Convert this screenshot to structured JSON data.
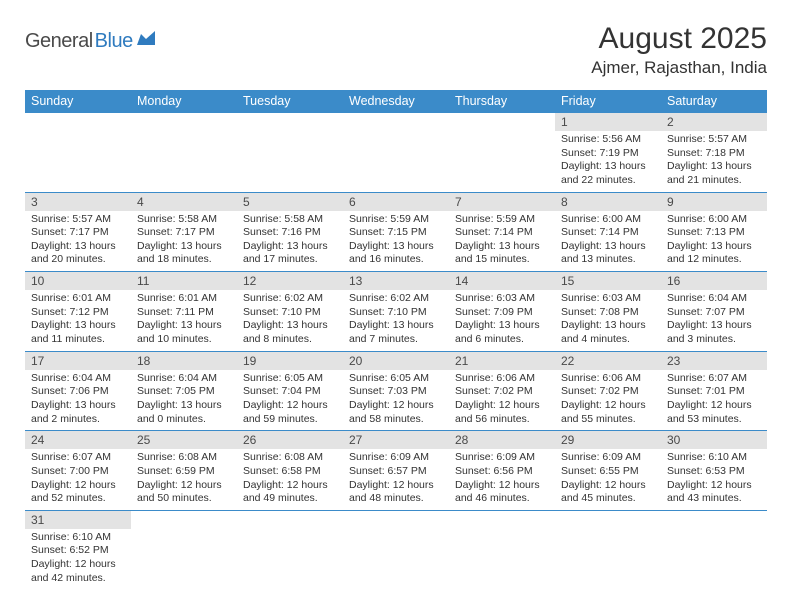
{
  "logo": {
    "word1": "General",
    "word2": "Blue",
    "color1": "#4a4a4a",
    "color2": "#2f7bbf"
  },
  "title": {
    "month": "August 2025",
    "location": "Ajmer, Rajasthan, India"
  },
  "theme": {
    "header_bg": "#3b8bc9",
    "header_fg": "#ffffff",
    "datebar_bg": "#e3e3e3",
    "datebar_fg": "#4a4a4a",
    "border_color": "#3b8bc9",
    "page_bg": "#ffffff",
    "body_font_size": 10.5,
    "header_font_size": 12.5,
    "title_font_size": 30,
    "location_font_size": 17
  },
  "weekdays": [
    "Sunday",
    "Monday",
    "Tuesday",
    "Wednesday",
    "Thursday",
    "Friday",
    "Saturday"
  ],
  "weeks": [
    [
      null,
      null,
      null,
      null,
      null,
      {
        "n": "1",
        "sr": "Sunrise: 5:56 AM",
        "ss": "Sunset: 7:19 PM",
        "dl": "Daylight: 13 hours and 22 minutes."
      },
      {
        "n": "2",
        "sr": "Sunrise: 5:57 AM",
        "ss": "Sunset: 7:18 PM",
        "dl": "Daylight: 13 hours and 21 minutes."
      }
    ],
    [
      {
        "n": "3",
        "sr": "Sunrise: 5:57 AM",
        "ss": "Sunset: 7:17 PM",
        "dl": "Daylight: 13 hours and 20 minutes."
      },
      {
        "n": "4",
        "sr": "Sunrise: 5:58 AM",
        "ss": "Sunset: 7:17 PM",
        "dl": "Daylight: 13 hours and 18 minutes."
      },
      {
        "n": "5",
        "sr": "Sunrise: 5:58 AM",
        "ss": "Sunset: 7:16 PM",
        "dl": "Daylight: 13 hours and 17 minutes."
      },
      {
        "n": "6",
        "sr": "Sunrise: 5:59 AM",
        "ss": "Sunset: 7:15 PM",
        "dl": "Daylight: 13 hours and 16 minutes."
      },
      {
        "n": "7",
        "sr": "Sunrise: 5:59 AM",
        "ss": "Sunset: 7:14 PM",
        "dl": "Daylight: 13 hours and 15 minutes."
      },
      {
        "n": "8",
        "sr": "Sunrise: 6:00 AM",
        "ss": "Sunset: 7:14 PM",
        "dl": "Daylight: 13 hours and 13 minutes."
      },
      {
        "n": "9",
        "sr": "Sunrise: 6:00 AM",
        "ss": "Sunset: 7:13 PM",
        "dl": "Daylight: 13 hours and 12 minutes."
      }
    ],
    [
      {
        "n": "10",
        "sr": "Sunrise: 6:01 AM",
        "ss": "Sunset: 7:12 PM",
        "dl": "Daylight: 13 hours and 11 minutes."
      },
      {
        "n": "11",
        "sr": "Sunrise: 6:01 AM",
        "ss": "Sunset: 7:11 PM",
        "dl": "Daylight: 13 hours and 10 minutes."
      },
      {
        "n": "12",
        "sr": "Sunrise: 6:02 AM",
        "ss": "Sunset: 7:10 PM",
        "dl": "Daylight: 13 hours and 8 minutes."
      },
      {
        "n": "13",
        "sr": "Sunrise: 6:02 AM",
        "ss": "Sunset: 7:10 PM",
        "dl": "Daylight: 13 hours and 7 minutes."
      },
      {
        "n": "14",
        "sr": "Sunrise: 6:03 AM",
        "ss": "Sunset: 7:09 PM",
        "dl": "Daylight: 13 hours and 6 minutes."
      },
      {
        "n": "15",
        "sr": "Sunrise: 6:03 AM",
        "ss": "Sunset: 7:08 PM",
        "dl": "Daylight: 13 hours and 4 minutes."
      },
      {
        "n": "16",
        "sr": "Sunrise: 6:04 AM",
        "ss": "Sunset: 7:07 PM",
        "dl": "Daylight: 13 hours and 3 minutes."
      }
    ],
    [
      {
        "n": "17",
        "sr": "Sunrise: 6:04 AM",
        "ss": "Sunset: 7:06 PM",
        "dl": "Daylight: 13 hours and 2 minutes."
      },
      {
        "n": "18",
        "sr": "Sunrise: 6:04 AM",
        "ss": "Sunset: 7:05 PM",
        "dl": "Daylight: 13 hours and 0 minutes."
      },
      {
        "n": "19",
        "sr": "Sunrise: 6:05 AM",
        "ss": "Sunset: 7:04 PM",
        "dl": "Daylight: 12 hours and 59 minutes."
      },
      {
        "n": "20",
        "sr": "Sunrise: 6:05 AM",
        "ss": "Sunset: 7:03 PM",
        "dl": "Daylight: 12 hours and 58 minutes."
      },
      {
        "n": "21",
        "sr": "Sunrise: 6:06 AM",
        "ss": "Sunset: 7:02 PM",
        "dl": "Daylight: 12 hours and 56 minutes."
      },
      {
        "n": "22",
        "sr": "Sunrise: 6:06 AM",
        "ss": "Sunset: 7:02 PM",
        "dl": "Daylight: 12 hours and 55 minutes."
      },
      {
        "n": "23",
        "sr": "Sunrise: 6:07 AM",
        "ss": "Sunset: 7:01 PM",
        "dl": "Daylight: 12 hours and 53 minutes."
      }
    ],
    [
      {
        "n": "24",
        "sr": "Sunrise: 6:07 AM",
        "ss": "Sunset: 7:00 PM",
        "dl": "Daylight: 12 hours and 52 minutes."
      },
      {
        "n": "25",
        "sr": "Sunrise: 6:08 AM",
        "ss": "Sunset: 6:59 PM",
        "dl": "Daylight: 12 hours and 50 minutes."
      },
      {
        "n": "26",
        "sr": "Sunrise: 6:08 AM",
        "ss": "Sunset: 6:58 PM",
        "dl": "Daylight: 12 hours and 49 minutes."
      },
      {
        "n": "27",
        "sr": "Sunrise: 6:09 AM",
        "ss": "Sunset: 6:57 PM",
        "dl": "Daylight: 12 hours and 48 minutes."
      },
      {
        "n": "28",
        "sr": "Sunrise: 6:09 AM",
        "ss": "Sunset: 6:56 PM",
        "dl": "Daylight: 12 hours and 46 minutes."
      },
      {
        "n": "29",
        "sr": "Sunrise: 6:09 AM",
        "ss": "Sunset: 6:55 PM",
        "dl": "Daylight: 12 hours and 45 minutes."
      },
      {
        "n": "30",
        "sr": "Sunrise: 6:10 AM",
        "ss": "Sunset: 6:53 PM",
        "dl": "Daylight: 12 hours and 43 minutes."
      }
    ],
    [
      {
        "n": "31",
        "sr": "Sunrise: 6:10 AM",
        "ss": "Sunset: 6:52 PM",
        "dl": "Daylight: 12 hours and 42 minutes."
      },
      null,
      null,
      null,
      null,
      null,
      null
    ]
  ]
}
